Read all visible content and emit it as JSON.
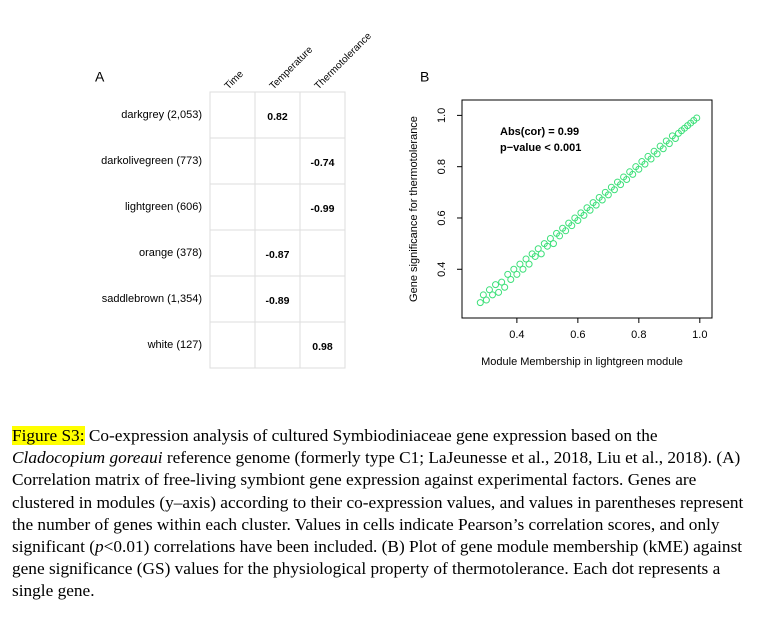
{
  "chart_data": [
    {
      "type": "heatmap",
      "panel": "A",
      "rows": [
        "darkgrey (2,053)",
        "darkolivegreen (773)",
        "lightgreen (606)",
        "orange (378)",
        "saddlebrown (1,354)",
        "white (127)"
      ],
      "columns": [
        "Time",
        "Temperature",
        "Thermotolerance"
      ],
      "values": [
        [
          null,
          0.82,
          null
        ],
        [
          null,
          null,
          -0.74
        ],
        [
          null,
          null,
          -0.99
        ],
        [
          null,
          -0.87,
          null
        ],
        [
          null,
          -0.89,
          null
        ],
        [
          null,
          null,
          0.98
        ]
      ],
      "positive_color": "#a0001e",
      "negative_color": "#2a1a8f"
    },
    {
      "type": "scatter",
      "panel": "B",
      "xlabel": "Module Membership in lightgreen module",
      "ylabel": "Gene significance for thermotolerance",
      "annotations": [
        "Abs(cor) = 0.99",
        "p−value < 0.001"
      ],
      "color": "#3ee07a",
      "xlim": [
        0.22,
        1.04
      ],
      "ylim": [
        0.21,
        1.06
      ],
      "xticks": [
        0.4,
        0.6,
        0.8,
        {
          "value": 1,
          "label": "1.0"
        }
      ],
      "yticks": [
        0.4,
        0.6,
        0.8,
        {
          "value": 1,
          "label": "1.0"
        }
      ],
      "x": [
        0.28,
        0.29,
        0.3,
        0.31,
        0.32,
        0.33,
        0.34,
        0.35,
        0.36,
        0.37,
        0.38,
        0.39,
        0.4,
        0.41,
        0.42,
        0.43,
        0.44,
        0.45,
        0.46,
        0.47,
        0.48,
        0.49,
        0.5,
        0.51,
        0.52,
        0.53,
        0.54,
        0.55,
        0.56,
        0.57,
        0.58,
        0.59,
        0.6,
        0.61,
        0.62,
        0.63,
        0.64,
        0.65,
        0.66,
        0.67,
        0.68,
        0.69,
        0.7,
        0.71,
        0.72,
        0.73,
        0.74,
        0.75,
        0.76,
        0.77,
        0.78,
        0.79,
        0.8,
        0.81,
        0.82,
        0.83,
        0.84,
        0.85,
        0.86,
        0.87,
        0.88,
        0.89,
        0.9,
        0.91,
        0.92,
        0.93,
        0.94,
        0.95,
        0.96,
        0.97,
        0.98,
        0.99
      ],
      "y": [
        0.27,
        0.3,
        0.28,
        0.32,
        0.3,
        0.34,
        0.31,
        0.35,
        0.33,
        0.38,
        0.36,
        0.4,
        0.38,
        0.42,
        0.4,
        0.44,
        0.42,
        0.46,
        0.45,
        0.48,
        0.46,
        0.5,
        0.49,
        0.52,
        0.5,
        0.54,
        0.53,
        0.56,
        0.55,
        0.58,
        0.57,
        0.6,
        0.59,
        0.62,
        0.61,
        0.64,
        0.63,
        0.66,
        0.65,
        0.68,
        0.67,
        0.7,
        0.69,
        0.72,
        0.71,
        0.74,
        0.73,
        0.76,
        0.75,
        0.78,
        0.77,
        0.8,
        0.79,
        0.82,
        0.81,
        0.84,
        0.83,
        0.86,
        0.85,
        0.88,
        0.87,
        0.9,
        0.89,
        0.92,
        0.91,
        0.93,
        0.94,
        0.95,
        0.96,
        0.97,
        0.98,
        0.99
      ]
    }
  ],
  "caption": {
    "label": "Figure S3:",
    "parts": [
      " Co-expression analysis of cultured Symbiodiniaceae gene expression based on the ",
      "Cladocopium goreaui",
      " reference genome (formerly type C1; LaJeunesse et al., 2018, Liu et al., 2018). (A) Correlation matrix of free-living symbiont gene expression against experimental factors. Genes are clustered in modules (y–axis) according to their co-expression values, and values in parentheses represent the number of genes within each cluster. Values in cells indicate Pearson’s correlation scores, and only significant (",
      "p",
      "<0.01) correlations have been included. (B) Plot of gene module membership (kME) against gene significance (GS) values for the physiological property of thermotolerance. Each dot represents a single gene."
    ]
  }
}
